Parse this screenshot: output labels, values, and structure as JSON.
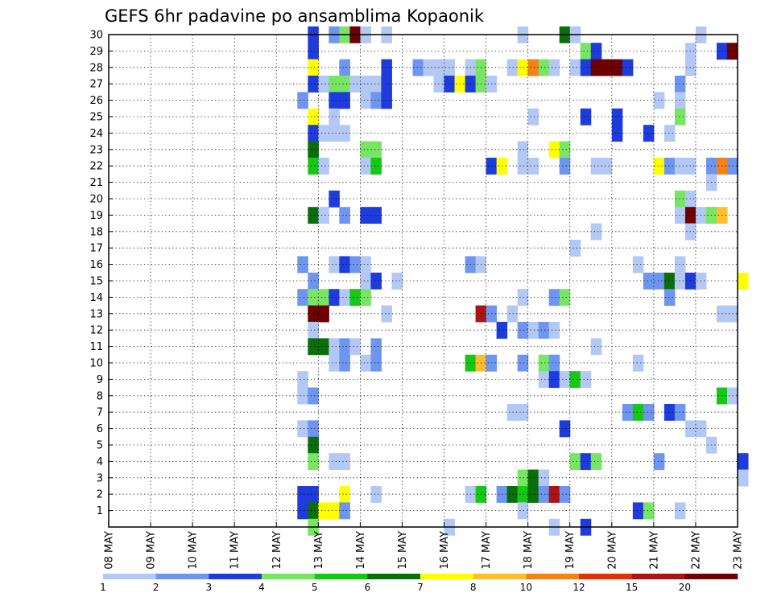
{
  "chart_data": {
    "type": "heatmap",
    "title": "GEFS 6hr padavine po ansamblima Kopaonik",
    "xlabel": "",
    "ylabel": "",
    "x_ticks": [
      "08 MAY",
      "09 MAY",
      "10 MAY",
      "11 MAY",
      "12 MAY",
      "13 MAY",
      "14 MAY",
      "15 MAY",
      "16 MAY",
      "17 MAY",
      "18 MAY",
      "19 MAY",
      "20 MAY",
      "21 MAY",
      "22 MAY",
      "23 MAY"
    ],
    "y_ticks": [
      "1",
      "2",
      "3",
      "4",
      "5",
      "6",
      "7",
      "8",
      "9",
      "10",
      "11",
      "12",
      "13",
      "14",
      "15",
      "16",
      "17",
      "18",
      "19",
      "20",
      "21",
      "22",
      "23",
      "24",
      "25",
      "26",
      "27",
      "28",
      "29",
      "30"
    ],
    "ylim": [
      0,
      30
    ],
    "time_step_hours": 6,
    "grid": "dotted",
    "colorbar": {
      "position": "bottom",
      "labels": [
        "1",
        "2",
        "3",
        "4",
        "5",
        "6",
        "7",
        "8",
        "10",
        "12",
        "15",
        "20"
      ],
      "colors": [
        "#b4c8f5",
        "#6e96f0",
        "#1e3cdc",
        "#78e664",
        "#14c814",
        "#0a6e0a",
        "#ffff00",
        "#ffbe2d",
        "#f58214",
        "#e1300a",
        "#aa1414",
        "#6e0000"
      ]
    },
    "cells_format": "[step_index_from_08_MAY_00UTC, member, color_index]",
    "cells": [
      [
        19,
        30,
        2
      ],
      [
        21,
        30,
        1
      ],
      [
        22,
        30,
        3
      ],
      [
        23,
        30,
        11
      ],
      [
        24,
        30,
        0
      ],
      [
        26,
        30,
        0
      ],
      [
        39,
        30,
        0
      ],
      [
        43,
        30,
        5
      ],
      [
        44,
        30,
        0
      ],
      [
        56,
        30,
        0
      ],
      [
        19,
        29,
        2
      ],
      [
        45,
        29,
        3
      ],
      [
        46,
        29,
        2
      ],
      [
        55,
        29,
        0
      ],
      [
        58,
        29,
        2
      ],
      [
        59,
        29,
        11
      ],
      [
        19,
        28,
        6
      ],
      [
        22,
        28,
        1
      ],
      [
        26,
        28,
        2
      ],
      [
        29,
        28,
        1
      ],
      [
        30,
        28,
        0
      ],
      [
        31,
        28,
        0
      ],
      [
        32,
        28,
        0
      ],
      [
        34,
        28,
        0
      ],
      [
        35,
        28,
        3
      ],
      [
        38,
        28,
        0
      ],
      [
        39,
        28,
        6
      ],
      [
        40,
        28,
        8
      ],
      [
        41,
        28,
        3
      ],
      [
        42,
        28,
        0
      ],
      [
        44,
        28,
        0
      ],
      [
        45,
        28,
        2
      ],
      [
        46,
        28,
        11
      ],
      [
        47,
        28,
        11
      ],
      [
        48,
        28,
        11
      ],
      [
        49,
        28,
        2
      ],
      [
        55,
        28,
        0
      ],
      [
        19,
        27,
        2
      ],
      [
        20,
        27,
        0
      ],
      [
        21,
        27,
        3
      ],
      [
        22,
        27,
        3
      ],
      [
        23,
        27,
        0
      ],
      [
        24,
        27,
        0
      ],
      [
        25,
        27,
        0
      ],
      [
        26,
        27,
        2
      ],
      [
        31,
        27,
        0
      ],
      [
        32,
        27,
        2
      ],
      [
        33,
        27,
        6
      ],
      [
        34,
        27,
        2
      ],
      [
        35,
        27,
        3
      ],
      [
        36,
        27,
        0
      ],
      [
        54,
        27,
        1
      ],
      [
        18,
        26,
        1
      ],
      [
        21,
        26,
        2
      ],
      [
        22,
        26,
        2
      ],
      [
        24,
        26,
        0
      ],
      [
        25,
        26,
        1
      ],
      [
        26,
        26,
        2
      ],
      [
        52,
        26,
        0
      ],
      [
        54,
        26,
        0
      ],
      [
        19,
        25,
        6
      ],
      [
        21,
        25,
        0
      ],
      [
        40,
        25,
        0
      ],
      [
        45,
        25,
        2
      ],
      [
        48,
        25,
        2
      ],
      [
        54,
        25,
        3
      ],
      [
        19,
        24,
        2
      ],
      [
        20,
        24,
        0
      ],
      [
        21,
        24,
        0
      ],
      [
        22,
        24,
        0
      ],
      [
        48,
        24,
        2
      ],
      [
        51,
        24,
        2
      ],
      [
        53,
        24,
        0
      ],
      [
        19,
        23,
        5
      ],
      [
        24,
        23,
        3
      ],
      [
        25,
        23,
        3
      ],
      [
        39,
        23,
        0
      ],
      [
        42,
        23,
        6
      ],
      [
        43,
        23,
        3
      ],
      [
        19,
        22,
        4
      ],
      [
        20,
        22,
        0
      ],
      [
        24,
        22,
        0
      ],
      [
        25,
        22,
        4
      ],
      [
        36,
        22,
        2
      ],
      [
        37,
        22,
        6
      ],
      [
        39,
        22,
        0
      ],
      [
        40,
        22,
        0
      ],
      [
        43,
        22,
        1
      ],
      [
        46,
        22,
        0
      ],
      [
        47,
        22,
        0
      ],
      [
        52,
        22,
        6
      ],
      [
        53,
        22,
        1
      ],
      [
        54,
        22,
        0
      ],
      [
        55,
        22,
        0
      ],
      [
        57,
        22,
        1
      ],
      [
        58,
        22,
        8
      ],
      [
        59,
        22,
        1
      ],
      [
        57,
        21,
        0
      ],
      [
        54,
        20,
        3
      ],
      [
        55,
        20,
        0
      ],
      [
        21,
        20,
        2
      ],
      [
        19,
        19,
        5
      ],
      [
        20,
        19,
        0
      ],
      [
        22,
        19,
        1
      ],
      [
        24,
        19,
        2
      ],
      [
        25,
        19,
        2
      ],
      [
        54,
        19,
        0
      ],
      [
        55,
        19,
        11
      ],
      [
        56,
        19,
        0
      ],
      [
        57,
        19,
        3
      ],
      [
        58,
        19,
        7
      ],
      [
        55,
        18,
        0
      ],
      [
        46,
        18,
        0
      ],
      [
        44,
        17,
        0
      ],
      [
        18,
        16,
        1
      ],
      [
        21,
        16,
        0
      ],
      [
        22,
        16,
        2
      ],
      [
        23,
        16,
        1
      ],
      [
        24,
        16,
        0
      ],
      [
        34,
        16,
        1
      ],
      [
        35,
        16,
        0
      ],
      [
        50,
        16,
        0
      ],
      [
        54,
        16,
        0
      ],
      [
        19,
        15,
        1
      ],
      [
        24,
        15,
        0
      ],
      [
        25,
        15,
        2
      ],
      [
        27,
        15,
        0
      ],
      [
        51,
        15,
        1
      ],
      [
        52,
        15,
        1
      ],
      [
        53,
        15,
        5
      ],
      [
        54,
        15,
        0
      ],
      [
        55,
        15,
        2
      ],
      [
        56,
        15,
        0
      ],
      [
        60,
        15,
        6
      ],
      [
        18,
        14,
        1
      ],
      [
        19,
        14,
        3
      ],
      [
        20,
        14,
        3
      ],
      [
        21,
        14,
        2
      ],
      [
        22,
        14,
        0
      ],
      [
        23,
        14,
        4
      ],
      [
        24,
        14,
        3
      ],
      [
        39,
        14,
        0
      ],
      [
        42,
        14,
        1
      ],
      [
        43,
        14,
        3
      ],
      [
        53,
        14,
        1
      ],
      [
        19,
        13,
        11
      ],
      [
        20,
        13,
        11
      ],
      [
        26,
        13,
        0
      ],
      [
        35,
        13,
        10
      ],
      [
        36,
        13,
        1
      ],
      [
        38,
        13,
        0
      ],
      [
        58,
        13,
        0
      ],
      [
        59,
        13,
        0
      ],
      [
        37,
        12,
        2
      ],
      [
        39,
        12,
        1
      ],
      [
        40,
        12,
        0
      ],
      [
        41,
        12,
        1
      ],
      [
        42,
        12,
        0
      ],
      [
        19,
        12,
        0
      ],
      [
        19,
        11,
        5
      ],
      [
        20,
        11,
        5
      ],
      [
        21,
        11,
        0
      ],
      [
        22,
        11,
        1
      ],
      [
        23,
        11,
        0
      ],
      [
        25,
        11,
        1
      ],
      [
        46,
        11,
        0
      ],
      [
        21,
        10,
        0
      ],
      [
        22,
        10,
        1
      ],
      [
        24,
        10,
        0
      ],
      [
        25,
        10,
        1
      ],
      [
        34,
        10,
        4
      ],
      [
        35,
        10,
        7
      ],
      [
        36,
        10,
        1
      ],
      [
        39,
        10,
        1
      ],
      [
        41,
        10,
        3
      ],
      [
        42,
        10,
        1
      ],
      [
        50,
        10,
        0
      ],
      [
        18,
        9,
        0
      ],
      [
        41,
        9,
        0
      ],
      [
        42,
        9,
        2
      ],
      [
        43,
        9,
        0
      ],
      [
        44,
        9,
        4
      ],
      [
        45,
        9,
        0
      ],
      [
        18,
        8,
        0
      ],
      [
        19,
        8,
        1
      ],
      [
        58,
        8,
        4
      ],
      [
        59,
        8,
        0
      ],
      [
        38,
        7,
        0
      ],
      [
        39,
        7,
        0
      ],
      [
        49,
        7,
        1
      ],
      [
        50,
        7,
        4
      ],
      [
        51,
        7,
        1
      ],
      [
        53,
        7,
        2
      ],
      [
        54,
        7,
        1
      ],
      [
        18,
        6,
        0
      ],
      [
        19,
        6,
        1
      ],
      [
        43,
        6,
        2
      ],
      [
        55,
        6,
        0
      ],
      [
        56,
        6,
        0
      ],
      [
        19,
        5,
        5
      ],
      [
        57,
        5,
        0
      ],
      [
        19,
        4,
        3
      ],
      [
        21,
        4,
        0
      ],
      [
        22,
        4,
        0
      ],
      [
        44,
        4,
        3
      ],
      [
        45,
        4,
        2
      ],
      [
        46,
        4,
        3
      ],
      [
        52,
        4,
        1
      ],
      [
        60,
        4,
        2
      ],
      [
        39,
        3,
        3
      ],
      [
        40,
        3,
        5
      ],
      [
        41,
        3,
        0
      ],
      [
        60,
        3,
        0
      ],
      [
        18,
        2,
        2
      ],
      [
        19,
        2,
        2
      ],
      [
        22,
        2,
        6
      ],
      [
        25,
        2,
        0
      ],
      [
        34,
        2,
        0
      ],
      [
        35,
        2,
        4
      ],
      [
        37,
        2,
        1
      ],
      [
        38,
        2,
        5
      ],
      [
        39,
        2,
        4
      ],
      [
        40,
        2,
        5
      ],
      [
        41,
        2,
        1
      ],
      [
        42,
        2,
        10
      ],
      [
        43,
        2,
        1
      ],
      [
        18,
        1,
        2
      ],
      [
        19,
        1,
        5
      ],
      [
        20,
        1,
        6
      ],
      [
        21,
        1,
        6
      ],
      [
        22,
        1,
        1
      ],
      [
        39,
        1,
        0
      ],
      [
        50,
        1,
        2
      ],
      [
        51,
        1,
        3
      ],
      [
        54,
        1,
        0
      ],
      [
        19,
        0,
        3
      ],
      [
        32,
        0,
        0
      ],
      [
        42,
        0,
        0
      ],
      [
        45,
        0,
        2
      ]
    ]
  }
}
